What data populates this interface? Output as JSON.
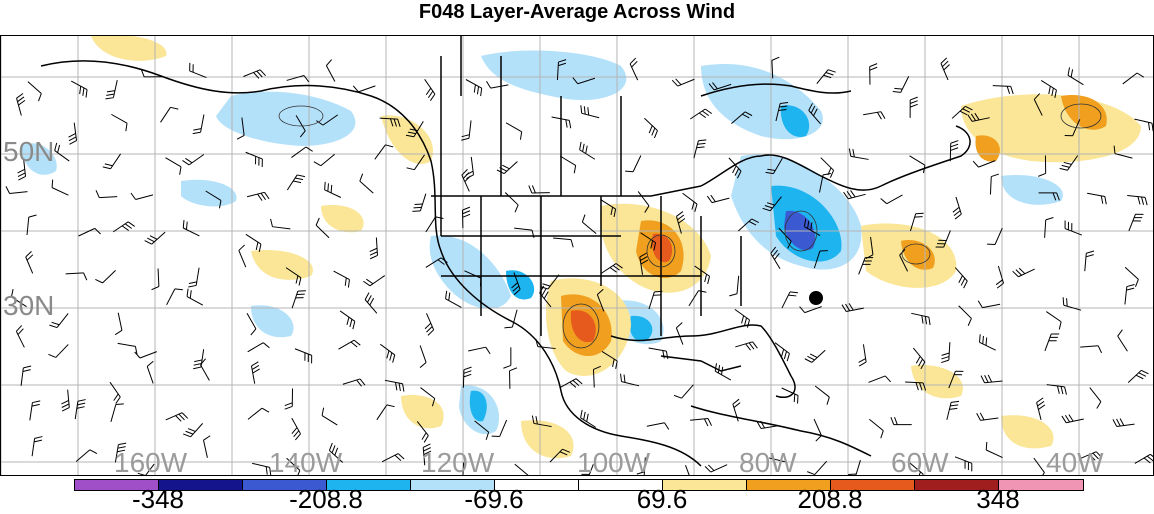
{
  "title": "F048 Layer-Average Across Wind",
  "map": {
    "latitude_labels": [
      "50N",
      "30N"
    ],
    "longitude_labels": [
      "160W",
      "140W",
      "120W",
      "100W",
      "80W",
      "60W",
      "40W"
    ],
    "marker": "storm-center-dot"
  },
  "colorbar": {
    "colors": [
      "#a04fc8",
      "#14148c",
      "#3b5ad2",
      "#1eb4f0",
      "#b4e1fa",
      "#ffffff",
      "#ffffff",
      "#fae696",
      "#f0a01e",
      "#e65a1e",
      "#a01e1e",
      "#f096b4"
    ],
    "labels": [
      "-348",
      "-208.8",
      "-69.6",
      "69.6",
      "208.8",
      "348"
    ]
  }
}
